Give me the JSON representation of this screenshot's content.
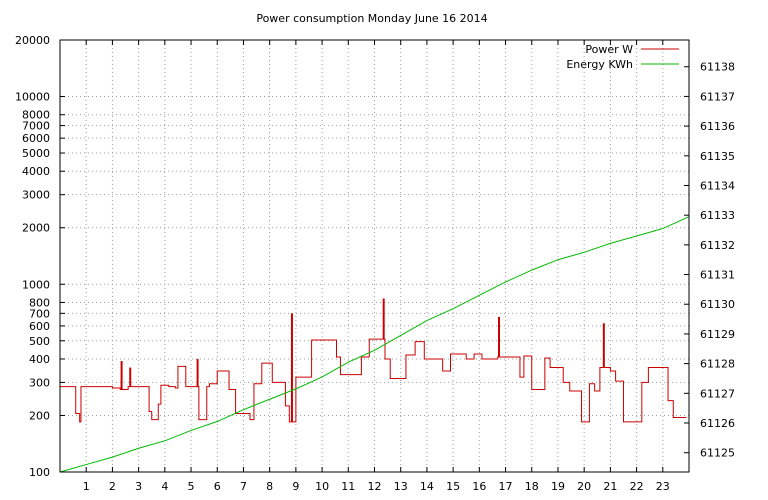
{
  "chart_data": {
    "type": "line",
    "title": "Power consumption Monday June 16 2014",
    "x_ticks": [
      1,
      2,
      3,
      4,
      5,
      6,
      7,
      8,
      9,
      10,
      11,
      12,
      13,
      14,
      15,
      16,
      17,
      18,
      19,
      20,
      21,
      22,
      23
    ],
    "xlim": [
      0,
      24
    ],
    "y_left": {
      "scale": "log",
      "ylim": [
        100,
        20000
      ],
      "ticks": [
        100,
        200,
        300,
        400,
        500,
        600,
        700,
        800,
        1000,
        2000,
        3000,
        4000,
        5000,
        6000,
        7000,
        8000,
        10000,
        20000
      ]
    },
    "y_right": {
      "scale": "linear",
      "ylim": [
        61124.35,
        61138.9
      ],
      "ticks": [
        61125,
        61126,
        61127,
        61128,
        61129,
        61130,
        61131,
        61132,
        61133,
        61134,
        61135,
        61136,
        61137,
        61138
      ]
    },
    "grid": true,
    "legend_position": "top-right",
    "series": [
      {
        "name": "Power W",
        "axis": "left",
        "color": "#cc0000",
        "step": true,
        "points": [
          [
            0.0,
            285
          ],
          [
            0.6,
            205
          ],
          [
            0.75,
            185
          ],
          [
            0.8,
            285
          ],
          [
            2.0,
            280
          ],
          [
            2.3,
            275
          ],
          [
            2.6,
            285
          ],
          [
            3.4,
            210
          ],
          [
            3.5,
            190
          ],
          [
            3.75,
            230
          ],
          [
            3.85,
            290
          ],
          [
            4.15,
            285
          ],
          [
            4.4,
            280
          ],
          [
            4.5,
            365
          ],
          [
            4.8,
            285
          ],
          [
            5.3,
            190
          ],
          [
            5.6,
            285
          ],
          [
            5.7,
            295
          ],
          [
            6.0,
            345
          ],
          [
            6.45,
            275
          ],
          [
            6.7,
            205
          ],
          [
            7.25,
            190
          ],
          [
            7.4,
            295
          ],
          [
            7.7,
            380
          ],
          [
            8.1,
            300
          ],
          [
            8.6,
            225
          ],
          [
            8.75,
            185
          ],
          [
            9.0,
            320
          ],
          [
            9.6,
            505
          ],
          [
            10.4,
            505
          ],
          [
            10.55,
            410
          ],
          [
            10.7,
            330
          ],
          [
            11.5,
            410
          ],
          [
            11.8,
            510
          ],
          [
            12.4,
            400
          ],
          [
            12.6,
            315
          ],
          [
            13.2,
            420
          ],
          [
            13.55,
            495
          ],
          [
            13.9,
            400
          ],
          [
            14.6,
            345
          ],
          [
            14.9,
            425
          ],
          [
            15.5,
            400
          ],
          [
            15.8,
            425
          ],
          [
            16.1,
            400
          ],
          [
            16.7,
            410
          ],
          [
            17.55,
            320
          ],
          [
            17.7,
            415
          ],
          [
            18.0,
            275
          ],
          [
            18.5,
            405
          ],
          [
            18.7,
            360
          ],
          [
            19.2,
            300
          ],
          [
            19.45,
            270
          ],
          [
            19.9,
            185
          ],
          [
            20.2,
            295
          ],
          [
            20.4,
            270
          ],
          [
            20.6,
            360
          ],
          [
            21.0,
            345
          ],
          [
            21.2,
            305
          ],
          [
            21.5,
            185
          ],
          [
            22.2,
            300
          ],
          [
            22.45,
            360
          ],
          [
            23.2,
            240
          ],
          [
            23.4,
            195
          ],
          [
            23.9,
            195
          ]
        ],
        "spikes": [
          [
            2.35,
            390
          ],
          [
            2.68,
            360
          ],
          [
            5.25,
            400
          ],
          [
            8.85,
            700
          ],
          [
            12.35,
            840
          ],
          [
            16.75,
            670
          ],
          [
            20.75,
            620
          ]
        ]
      },
      {
        "name": "Energy KWh",
        "axis": "right",
        "color": "#00bb00",
        "points": [
          [
            0.0,
            61124.35
          ],
          [
            1.0,
            61124.6
          ],
          [
            2.0,
            61124.85
          ],
          [
            3.0,
            61125.15
          ],
          [
            4.0,
            61125.4
          ],
          [
            5.0,
            61125.75
          ],
          [
            6.0,
            61126.05
          ],
          [
            7.0,
            61126.45
          ],
          [
            8.0,
            61126.8
          ],
          [
            9.0,
            61127.15
          ],
          [
            10.0,
            61127.55
          ],
          [
            11.0,
            61128.05
          ],
          [
            12.0,
            61128.45
          ],
          [
            13.0,
            61128.95
          ],
          [
            14.0,
            61129.45
          ],
          [
            15.0,
            61129.85
          ],
          [
            16.0,
            61130.3
          ],
          [
            17.0,
            61130.75
          ],
          [
            18.0,
            61131.15
          ],
          [
            19.0,
            61131.5
          ],
          [
            20.0,
            61131.75
          ],
          [
            21.0,
            61132.05
          ],
          [
            22.0,
            61132.3
          ],
          [
            23.0,
            61132.55
          ],
          [
            24.0,
            61132.95
          ]
        ]
      }
    ]
  }
}
